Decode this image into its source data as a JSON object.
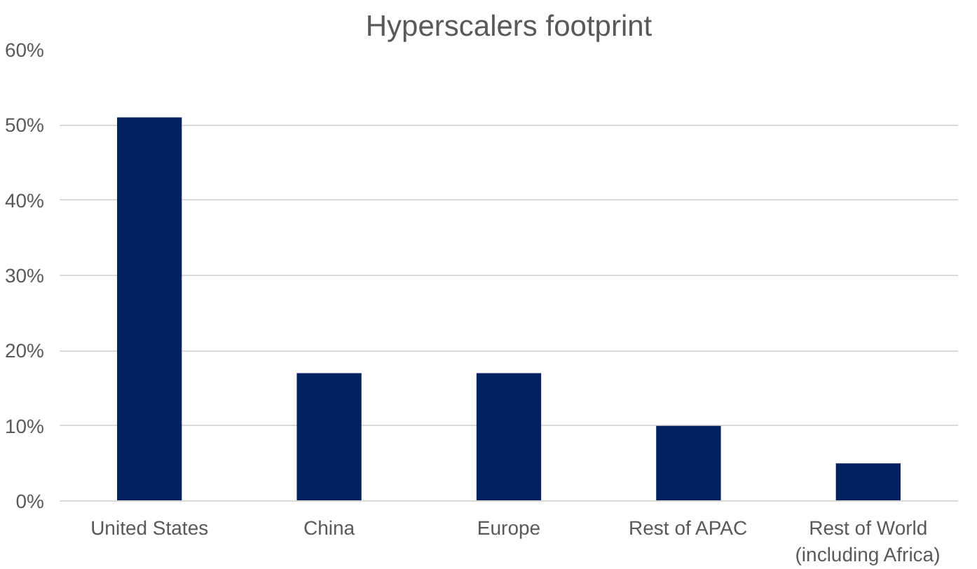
{
  "chart_data": {
    "type": "bar",
    "title": "Hyperscalers footprint",
    "categories": [
      "United States",
      "China",
      "Europe",
      "Rest of APAC",
      "Rest of World\n(including Africa)"
    ],
    "values": [
      51,
      17,
      17,
      10,
      5
    ],
    "color": "#002060",
    "ylim": [
      0,
      60
    ],
    "yticks": [
      {
        "value": 0,
        "label": "0%"
      },
      {
        "value": 10,
        "label": "10%"
      },
      {
        "value": 20,
        "label": "20%"
      },
      {
        "value": 30,
        "label": "30%"
      },
      {
        "value": 40,
        "label": "40%"
      },
      {
        "value": 50,
        "label": "50%"
      },
      {
        "value": 60,
        "label": "60%"
      }
    ],
    "grid": "y"
  }
}
